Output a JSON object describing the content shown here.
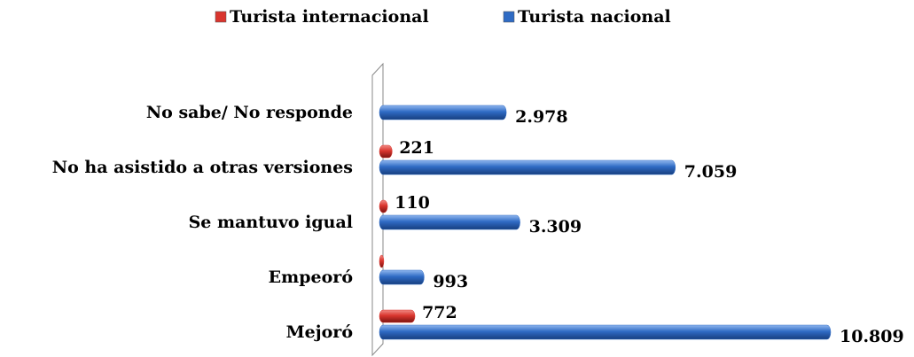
{
  "chart_data": {
    "type": "bar",
    "orientation": "horizontal",
    "categories": [
      "No sabe/ No responde",
      "No ha asistido a otras versiones",
      "Se mantuvo igual",
      "Empeoró",
      "Mejoró"
    ],
    "series": [
      {
        "name": "Turista internacional",
        "color": "#d9352e",
        "values": [
          null,
          221,
          110,
          20,
          772
        ],
        "value_labels": [
          null,
          "221",
          "110",
          null,
          "772"
        ]
      },
      {
        "name": "Turista nacional",
        "color": "#2f6bc4",
        "values": [
          2978,
          7059,
          3309,
          993,
          10809
        ],
        "value_labels": [
          "2.978",
          "7.059",
          "3.309",
          "993",
          "10.809"
        ]
      }
    ],
    "legend": "top"
  }
}
